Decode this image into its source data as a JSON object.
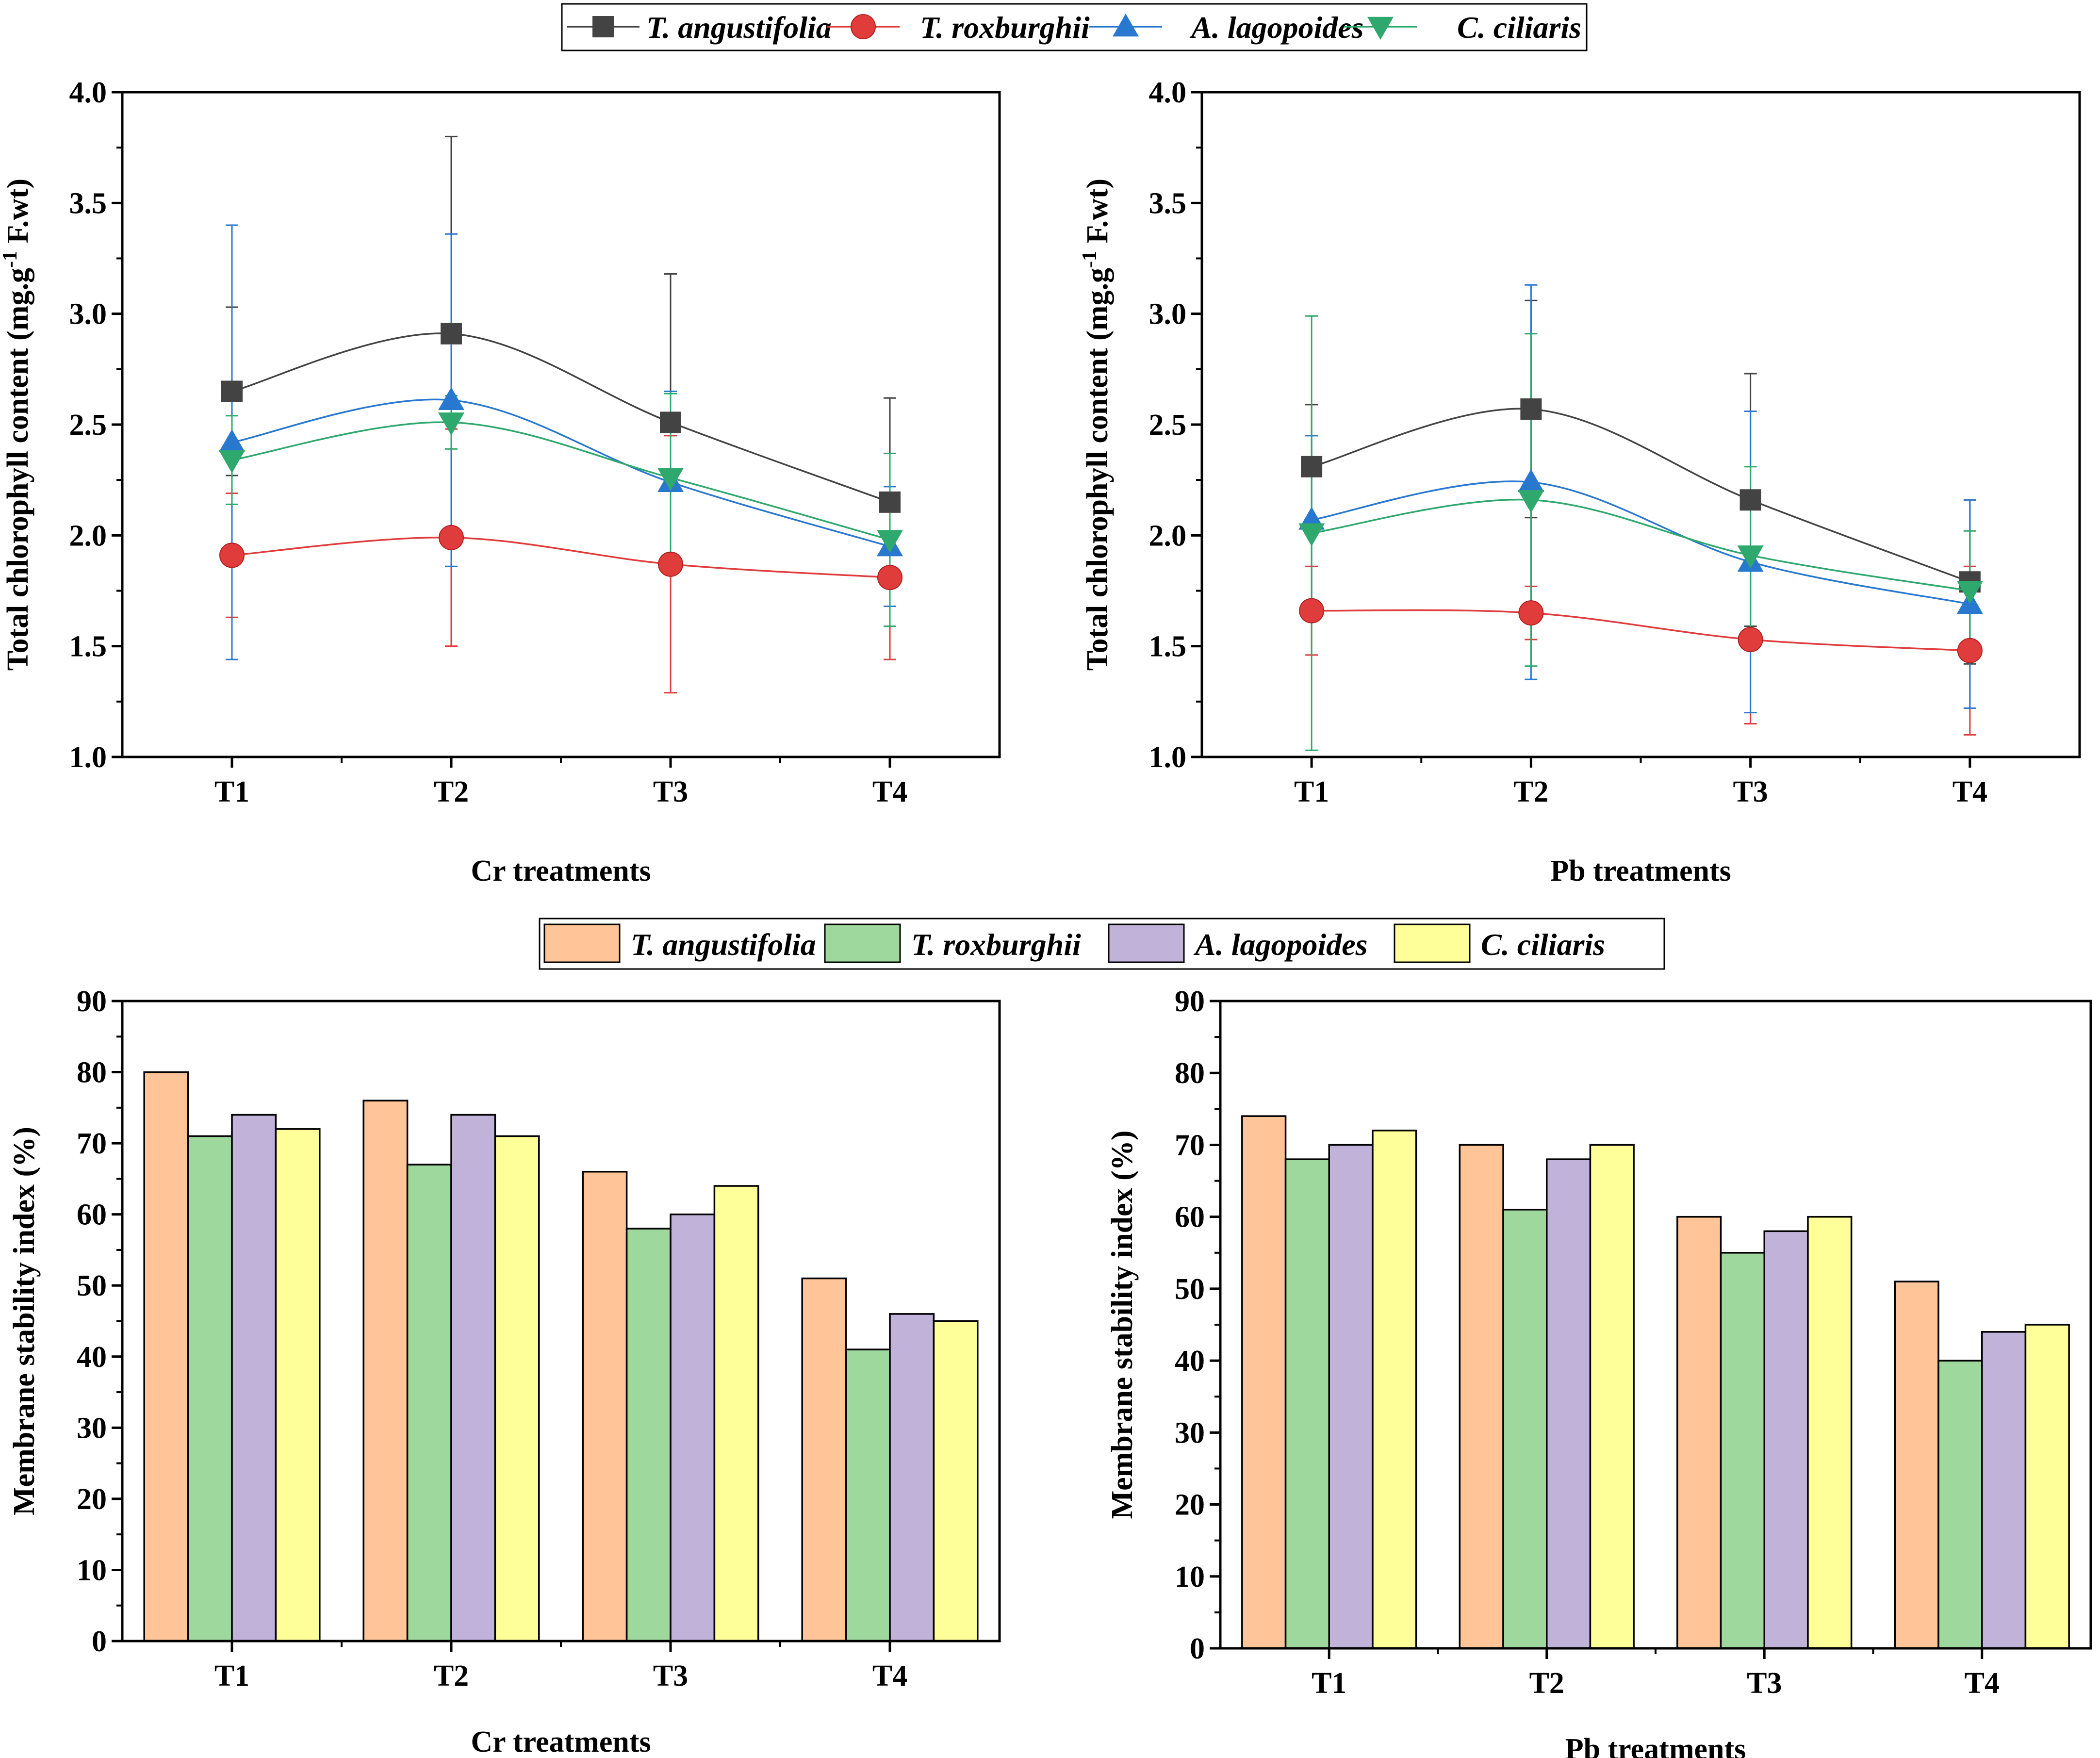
{
  "figure": {
    "legend_top": [
      {
        "name": "T. angustifolia",
        "color": "#434343",
        "marker": "square"
      },
      {
        "name": "T. roxburghii",
        "color": "#e03c3c",
        "marker": "circle"
      },
      {
        "name": "A. lagopoides",
        "color": "#2878d0",
        "marker": "triangle-up"
      },
      {
        "name": "C. ciliaris",
        "color": "#2ea86c",
        "marker": "triangle-down"
      }
    ],
    "legend_bottom": [
      {
        "name": "T. angustifolia",
        "color": "#ffc497"
      },
      {
        "name": "T. roxburghii",
        "color": "#9ed89c"
      },
      {
        "name": "A. lagopoides",
        "color": "#c1b2d9"
      },
      {
        "name": "C. ciliaris",
        "color": "#ffff9a"
      }
    ]
  },
  "chart_data": [
    {
      "id": "cr-chlorophyll",
      "type": "line",
      "title": "",
      "xlabel": "Cr treatments",
      "ylabel_main": "Total chlorophyll content (mg.g",
      "ylabel_sup": "-1",
      "ylabel_tail": " F.wt)",
      "categories": [
        "T1",
        "T2",
        "T3",
        "T4"
      ],
      "ylim": [
        1.0,
        4.0
      ],
      "yticks": [
        "1.0",
        "1.5",
        "2.0",
        "2.5",
        "3.0",
        "3.5",
        "4.0"
      ],
      "series": [
        {
          "name": "T. angustifolia",
          "values": [
            2.65,
            2.91,
            2.51,
            2.15
          ],
          "errors": [
            0.38,
            0.89,
            0.67,
            0.47
          ]
        },
        {
          "name": "T. roxburghii",
          "values": [
            1.91,
            1.99,
            1.87,
            1.81
          ],
          "errors": [
            0.28,
            0.49,
            0.58,
            0.37
          ]
        },
        {
          "name": "A. lagopoides",
          "values": [
            2.42,
            2.61,
            2.24,
            1.95
          ],
          "errors": [
            0.98,
            0.75,
            0.41,
            0.27
          ]
        },
        {
          "name": "C. ciliaris",
          "values": [
            2.34,
            2.51,
            2.26,
            1.98
          ],
          "errors": [
            0.2,
            0.12,
            0.38,
            0.39
          ]
        }
      ]
    },
    {
      "id": "pb-chlorophyll",
      "type": "line",
      "title": "",
      "xlabel": "Pb treatments",
      "ylabel_main": "Total chlorophyll content (mg.g",
      "ylabel_sup": "-1",
      "ylabel_tail": " F.wt)",
      "categories": [
        "T1",
        "T2",
        "T3",
        "T4"
      ],
      "ylim": [
        1.0,
        4.0
      ],
      "yticks": [
        "1.0",
        "1.5",
        "2.0",
        "2.5",
        "3.0",
        "3.5",
        "4.0"
      ],
      "series": [
        {
          "name": "T. angustifolia",
          "values": [
            2.31,
            2.57,
            2.16,
            1.79
          ],
          "errors": [
            0.28,
            0.49,
            0.57,
            0.37
          ]
        },
        {
          "name": "T. roxburghii",
          "values": [
            1.66,
            1.65,
            1.53,
            1.48
          ],
          "errors": [
            0.2,
            0.12,
            0.38,
            0.38
          ]
        },
        {
          "name": "A. lagopoides",
          "values": [
            2.07,
            2.24,
            1.88,
            1.69
          ],
          "errors": [
            0.38,
            0.89,
            0.68,
            0.47
          ]
        },
        {
          "name": "C. ciliaris",
          "values": [
            2.01,
            2.16,
            1.91,
            1.75
          ],
          "errors": [
            0.98,
            0.75,
            0.4,
            0.27
          ]
        }
      ]
    },
    {
      "id": "cr-msi",
      "type": "bar",
      "title": "",
      "xlabel": "Cr treatments",
      "ylabel": "Membrane stability index (%)",
      "categories": [
        "T1",
        "T2",
        "T3",
        "T4"
      ],
      "ylim": [
        0,
        90
      ],
      "yticks": [
        "0",
        "10",
        "20",
        "30",
        "40",
        "50",
        "60",
        "70",
        "80",
        "90"
      ],
      "series": [
        {
          "name": "T. angustifolia",
          "values": [
            80,
            76,
            66,
            51
          ]
        },
        {
          "name": "T. roxburghii",
          "values": [
            71,
            67,
            58,
            41
          ]
        },
        {
          "name": "A. lagopoides",
          "values": [
            74,
            74,
            60,
            46
          ]
        },
        {
          "name": "C. ciliaris",
          "values": [
            72,
            71,
            64,
            45
          ]
        }
      ]
    },
    {
      "id": "pb-msi",
      "type": "bar",
      "title": "",
      "xlabel": "Pb treatments",
      "ylabel": "Membrane stability index (%)",
      "categories": [
        "T1",
        "T2",
        "T3",
        "T4"
      ],
      "ylim": [
        0,
        90
      ],
      "yticks": [
        "0",
        "10",
        "20",
        "30",
        "40",
        "50",
        "60",
        "70",
        "80",
        "90"
      ],
      "series": [
        {
          "name": "T. angustifolia",
          "values": [
            74,
            70,
            60,
            51
          ]
        },
        {
          "name": "T. roxburghii",
          "values": [
            68,
            61,
            55,
            40
          ]
        },
        {
          "name": "A. lagopoides",
          "values": [
            70,
            68,
            58,
            44
          ]
        },
        {
          "name": "C. ciliaris",
          "values": [
            72,
            70,
            60,
            45
          ]
        }
      ]
    }
  ]
}
